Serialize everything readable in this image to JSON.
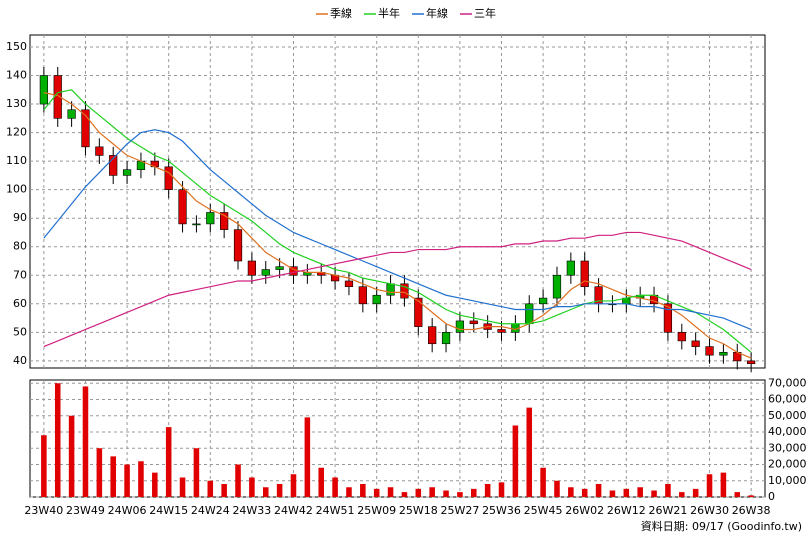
{
  "chart_data": [
    {
      "type": "candlestick",
      "x": [
        0,
        3,
        6,
        9,
        12,
        15,
        18,
        21,
        24,
        27,
        30,
        33,
        36,
        39,
        42,
        45,
        48,
        51,
        54,
        57,
        60,
        63,
        66,
        69,
        72,
        75,
        78,
        81,
        84,
        87,
        90,
        93,
        96,
        99,
        102,
        105,
        108,
        111,
        114,
        117,
        120,
        123,
        126,
        129,
        132,
        135,
        138,
        141,
        144,
        147,
        150,
        153
      ],
      "open": [
        130,
        140,
        125,
        128,
        115,
        112,
        105,
        107,
        110,
        108,
        100,
        88,
        88,
        92,
        86,
        75,
        70,
        72,
        73,
        70,
        71,
        70,
        68,
        66,
        60,
        63,
        67,
        62,
        52,
        46,
        50,
        54,
        53,
        51,
        50,
        53,
        60,
        62,
        70,
        75,
        66,
        60,
        60,
        62,
        63,
        60,
        50,
        47,
        45,
        42,
        43,
        40
      ],
      "high": [
        143,
        143,
        131,
        131,
        118,
        115,
        110,
        113,
        113,
        111,
        103,
        91,
        95,
        95,
        89,
        78,
        75,
        76,
        76,
        74,
        74,
        73,
        71,
        69,
        66,
        70,
        70,
        65,
        55,
        53,
        57,
        57,
        56,
        54,
        56,
        63,
        65,
        73,
        78,
        78,
        69,
        63,
        65,
        66,
        66,
        63,
        53,
        50,
        48,
        46,
        46,
        43
      ],
      "low": [
        127,
        122,
        122,
        112,
        109,
        102,
        102,
        104,
        105,
        97,
        85,
        85,
        85,
        83,
        72,
        67,
        67,
        69,
        67,
        67,
        67,
        65,
        63,
        57,
        57,
        60,
        59,
        49,
        43,
        43,
        47,
        50,
        48,
        47,
        47,
        50,
        57,
        59,
        67,
        63,
        57,
        57,
        57,
        59,
        57,
        47,
        44,
        42,
        39,
        39,
        37,
        36
      ],
      "close": [
        140,
        125,
        128,
        115,
        112,
        105,
        107,
        110,
        108,
        100,
        88,
        88,
        92,
        86,
        75,
        70,
        72,
        73,
        70,
        71,
        70,
        68,
        66,
        60,
        63,
        67,
        62,
        52,
        46,
        50,
        54,
        53,
        51,
        50,
        53,
        60,
        62,
        70,
        75,
        66,
        60,
        60,
        62,
        63,
        60,
        50,
        47,
        45,
        42,
        43,
        40,
        39
      ],
      "up_color": "#00b000",
      "down_color": "#e00000",
      "series": [
        {
          "name": "季線",
          "color": "#e07020",
          "values": [
            134,
            133,
            130,
            126,
            120,
            116,
            112,
            110,
            108,
            106,
            101,
            96,
            93,
            91,
            88,
            83,
            78,
            75,
            72,
            71,
            71,
            70,
            69,
            67,
            65,
            64,
            64,
            61,
            57,
            53,
            51,
            51,
            52,
            52,
            51,
            53,
            56,
            60,
            65,
            68,
            67,
            65,
            63,
            62,
            61,
            59,
            56,
            52,
            48,
            46,
            43,
            41
          ]
        },
        {
          "name": "半年",
          "color": "#20d020",
          "values": [
            128,
            134,
            135,
            130,
            126,
            122,
            118,
            115,
            112,
            110,
            106,
            102,
            98,
            95,
            92,
            89,
            85,
            81,
            78,
            76,
            74,
            72,
            71,
            69,
            68,
            67,
            66,
            64,
            61,
            58,
            56,
            55,
            54,
            53,
            53,
            53,
            54,
            56,
            58,
            60,
            61,
            61,
            62,
            63,
            63,
            61,
            59,
            57,
            54,
            51,
            47,
            43
          ]
        },
        {
          "name": "年線",
          "color": "#2070d0",
          "values": [
            83,
            89,
            95,
            101,
            106,
            111,
            116,
            120,
            121,
            120,
            117,
            112,
            107,
            103,
            99,
            95,
            91,
            88,
            85,
            83,
            81,
            79,
            77,
            75,
            73,
            71,
            69,
            67,
            65,
            63,
            62,
            61,
            60,
            59,
            58,
            58,
            58,
            59,
            59,
            60,
            60,
            60,
            60,
            59,
            59,
            58,
            58,
            57,
            56,
            55,
            53,
            51
          ]
        },
        {
          "name": "三年",
          "color": "#d02080",
          "values": [
            45,
            47,
            49,
            51,
            53,
            55,
            57,
            59,
            61,
            63,
            64,
            65,
            66,
            67,
            68,
            68,
            69,
            70,
            71,
            72,
            73,
            74,
            75,
            76,
            77,
            78,
            78,
            79,
            79,
            79,
            80,
            80,
            80,
            80,
            81,
            81,
            82,
            82,
            83,
            83,
            84,
            84,
            85,
            85,
            84,
            83,
            82,
            80,
            78,
            76,
            74,
            72
          ]
        }
      ],
      "xlim": [
        -3,
        156
      ],
      "ylim": [
        37.5,
        154.2
      ],
      "yticks": [
        40,
        50,
        60,
        70,
        80,
        90,
        100,
        110,
        120,
        130,
        140,
        150
      ],
      "xticks": [
        {
          "value": 0,
          "label": "23W40"
        },
        {
          "value": 9,
          "label": "23W49"
        },
        {
          "value": 18,
          "label": "24W06"
        },
        {
          "value": 27,
          "label": "24W15"
        },
        {
          "value": 36,
          "label": "24W24"
        },
        {
          "value": 45,
          "label": "24W33"
        },
        {
          "value": 54,
          "label": "24W42"
        },
        {
          "value": 63,
          "label": "24W51"
        },
        {
          "value": 72,
          "label": "25W09"
        },
        {
          "value": 81,
          "label": "25W18"
        },
        {
          "value": 90,
          "label": "25W27"
        },
        {
          "value": 99,
          "label": "25W36"
        },
        {
          "value": 108,
          "label": "25W45"
        },
        {
          "value": 117,
          "label": "26W02"
        },
        {
          "value": 126,
          "label": "26W12"
        },
        {
          "value": 135,
          "label": "26W21"
        },
        {
          "value": 144,
          "label": "26W30"
        },
        {
          "value": 153,
          "label": "26W38"
        }
      ],
      "grid": true
    },
    {
      "type": "bar",
      "x": [
        0,
        3,
        6,
        9,
        12,
        15,
        18,
        21,
        24,
        27,
        30,
        33,
        36,
        39,
        42,
        45,
        48,
        51,
        54,
        57,
        60,
        63,
        66,
        69,
        72,
        75,
        78,
        81,
        84,
        87,
        90,
        93,
        96,
        99,
        102,
        105,
        108,
        111,
        114,
        117,
        120,
        123,
        126,
        129,
        132,
        135,
        138,
        141,
        144,
        147,
        150,
        153
      ],
      "values": [
        38000,
        70000,
        50000,
        68000,
        30000,
        25000,
        20000,
        22000,
        15000,
        43000,
        12000,
        30000,
        10000,
        8000,
        20000,
        12000,
        6000,
        8000,
        14000,
        49000,
        18000,
        12000,
        6000,
        8000,
        5000,
        6000,
        3000,
        5000,
        6000,
        4000,
        3000,
        5000,
        8000,
        9000,
        44000,
        55000,
        18000,
        10000,
        6000,
        5000,
        8000,
        4000,
        5000,
        6000,
        4000,
        8000,
        3000,
        5000,
        14000,
        15000,
        3000,
        1000
      ],
      "color": "#e00000",
      "ylim": [
        0,
        72000
      ],
      "yticks": [
        0,
        {
          "value": 10000,
          "label": "10,000"
        },
        {
          "value": 20000,
          "label": "20,000"
        },
        {
          "value": 30000,
          "label": "30,000"
        },
        {
          "value": 40000,
          "label": "40,000"
        },
        {
          "value": 50000,
          "label": "50,000"
        },
        {
          "value": 60000,
          "label": "60,000"
        },
        {
          "value": 70000,
          "label": "70,000"
        }
      ],
      "grid": true
    }
  ],
  "footer": "資料日期: 09/17 (Goodinfo.tw)"
}
